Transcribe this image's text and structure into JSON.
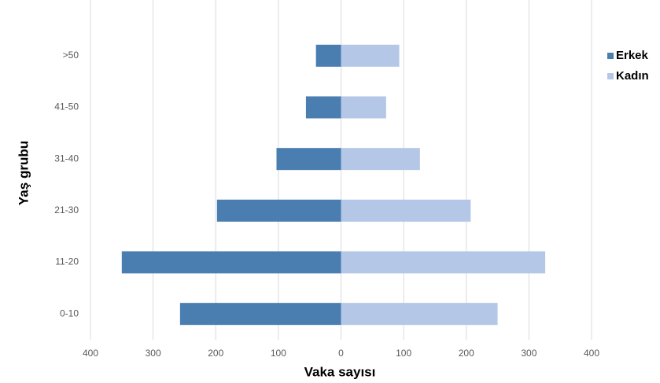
{
  "chart_data": {
    "type": "bar",
    "orientation": "horizontal",
    "stacked": true,
    "categories": [
      "0-10",
      "11-20",
      "21-30",
      "31-40",
      "41-50",
      ">50"
    ],
    "series": [
      {
        "name": "Erkek",
        "color": "#4a7eb0",
        "values": [
          -257,
          -350,
          -198,
          -103,
          -56,
          -40
        ]
      },
      {
        "name": "Kadın",
        "color": "#b4c7e7",
        "values": [
          250,
          326,
          207,
          126,
          72,
          93
        ]
      }
    ],
    "xlabel": "Vaka sayısı",
    "ylabel": "Yaş grubu",
    "xlim": [
      -400,
      400
    ],
    "xticks": [
      {
        "value": -400,
        "label": "400"
      },
      {
        "value": -300,
        "label": "300"
      },
      {
        "value": -200,
        "label": "200"
      },
      {
        "value": -100,
        "label": "100"
      },
      0,
      100,
      200,
      300,
      400
    ],
    "grid": true,
    "legend": "right"
  }
}
